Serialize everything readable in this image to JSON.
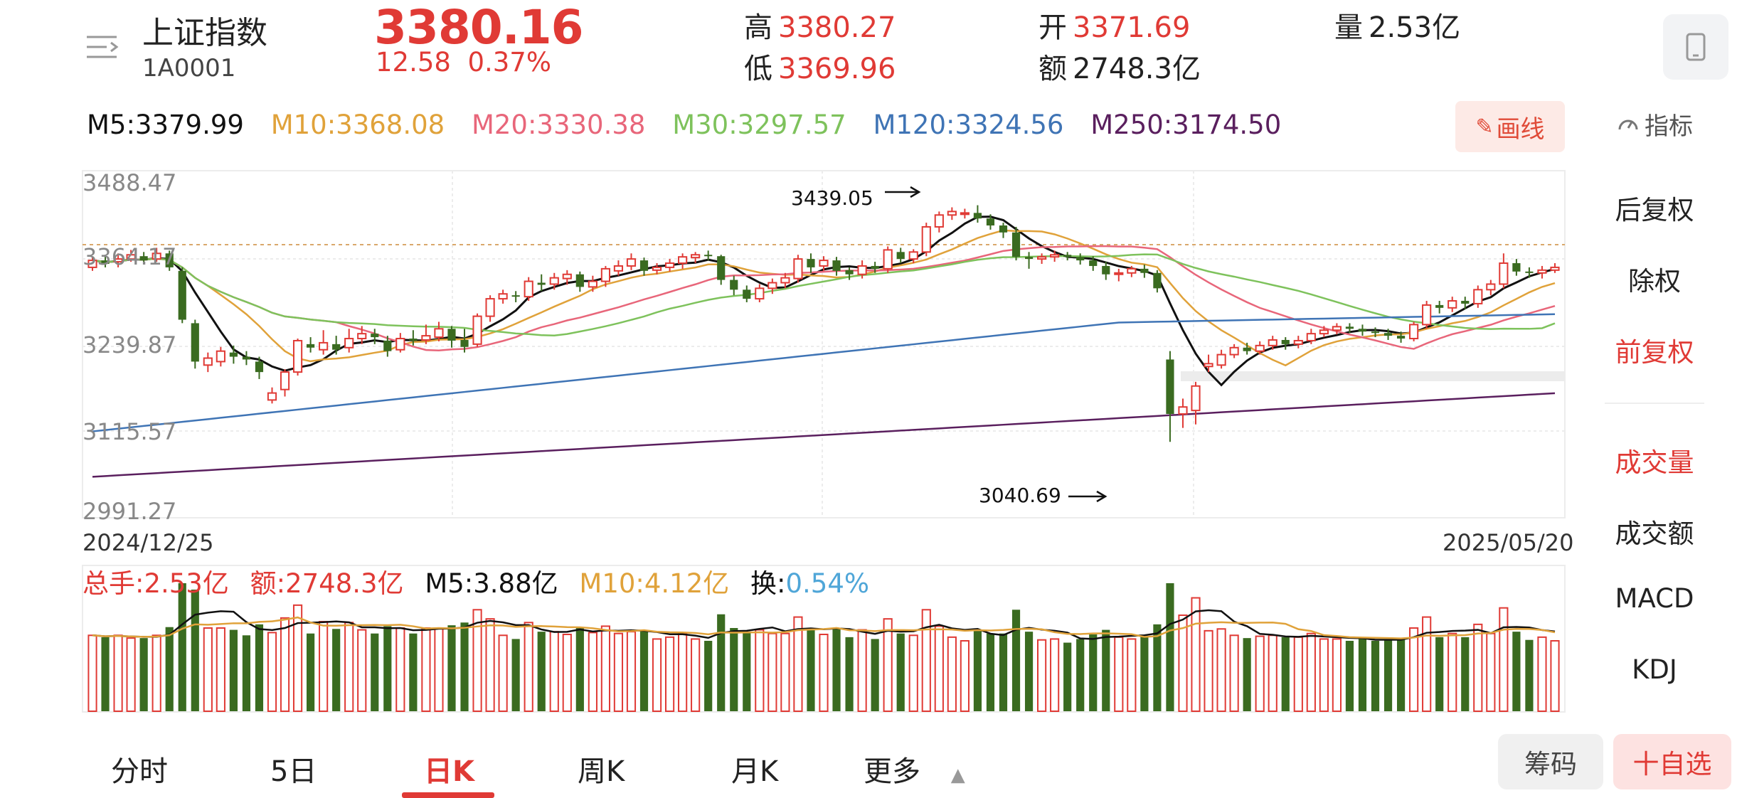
{
  "header": {
    "title": "上证指数",
    "code": "1A0001",
    "price": "3380.16",
    "change": "12.58",
    "change_pct": "0.37%",
    "high_label": "高",
    "high": "3380.27",
    "low_label": "低",
    "low": "3369.96",
    "open_label": "开",
    "open": "3371.69",
    "amount_label": "额",
    "amount": "2748.3亿",
    "volume_label": "量",
    "volume": "2.53亿"
  },
  "ma": {
    "m5": "M5:3379.99",
    "m10": "M10:3368.08",
    "m20": "M20:3330.38",
    "m30": "M30:3297.57",
    "m120": "M120:3324.56",
    "m250": "M250:3174.50"
  },
  "toolbar": {
    "draw_label": "画线",
    "indicator_label": "指标"
  },
  "right_panel": {
    "items": [
      "后复权",
      "除权",
      "前复权",
      "成交量",
      "成交额",
      "MACD",
      "KDJ"
    ]
  },
  "chart": {
    "y_ticks": [
      "3488.47",
      "3364.17",
      "3239.87",
      "3115.57",
      "2991.27"
    ],
    "start_date": "2024/12/25",
    "end_date": "2025/05/20",
    "high_annotation": "3439.05",
    "low_annotation": "3040.69"
  },
  "volume": {
    "total": "总手:2.53亿",
    "amount": "额:2748.3亿",
    "m5": "M5:3.88亿",
    "m10": "M10:4.12亿",
    "turnover_label": "换:",
    "turnover": "0.54%"
  },
  "tabs": {
    "items": [
      "分时",
      "5日",
      "日K",
      "周K",
      "月K",
      "更多"
    ],
    "active": "日K",
    "chips_label": "筹码",
    "favorite_label": "十自选"
  },
  "chart_data": {
    "type": "candlestick",
    "x_range": [
      "2024/12/25",
      "2025/05/20"
    ],
    "ylim": [
      2991.27,
      3488.47
    ],
    "y_ticks": [
      3488.47,
      3364.17,
      3239.87,
      3115.57,
      2991.27
    ],
    "annotations": [
      {
        "text": "3439.05",
        "value": 3439.05
      },
      {
        "text": "3040.69",
        "value": 3040.69
      }
    ],
    "candles": [
      [
        3350,
        3360,
        3345,
        3365
      ],
      [
        3360,
        3355,
        3350,
        3368
      ],
      [
        3358,
        3362,
        3350,
        3370
      ],
      [
        3362,
        3368,
        3358,
        3375
      ],
      [
        3366,
        3360,
        3355,
        3372
      ],
      [
        3362,
        3370,
        3358,
        3378
      ],
      [
        3370,
        3350,
        3345,
        3374
      ],
      [
        3345,
        3275,
        3270,
        3350
      ],
      [
        3270,
        3215,
        3205,
        3275
      ],
      [
        3210,
        3220,
        3200,
        3228
      ],
      [
        3215,
        3230,
        3208,
        3236
      ],
      [
        3228,
        3222,
        3212,
        3238
      ],
      [
        3222,
        3218,
        3210,
        3230
      ],
      [
        3215,
        3200,
        3190,
        3222
      ],
      [
        3160,
        3170,
        3155,
        3178
      ],
      [
        3175,
        3200,
        3165,
        3204
      ],
      [
        3200,
        3245,
        3195,
        3248
      ],
      [
        3240,
        3235,
        3228,
        3250
      ],
      [
        3232,
        3242,
        3225,
        3260
      ],
      [
        3240,
        3232,
        3225,
        3252
      ],
      [
        3235,
        3248,
        3228,
        3262
      ],
      [
        3248,
        3255,
        3240,
        3266
      ],
      [
        3255,
        3250,
        3240,
        3262
      ],
      [
        3245,
        3230,
        3222,
        3252
      ],
      [
        3232,
        3248,
        3228,
        3256
      ],
      [
        3248,
        3245,
        3238,
        3260
      ],
      [
        3246,
        3252,
        3240,
        3268
      ],
      [
        3250,
        3262,
        3244,
        3272
      ],
      [
        3262,
        3245,
        3235,
        3266
      ],
      [
        3246,
        3236,
        3228,
        3262
      ],
      [
        3240,
        3280,
        3236,
        3284
      ],
      [
        3280,
        3305,
        3272,
        3310
      ],
      [
        3305,
        3312,
        3298,
        3318
      ],
      [
        3310,
        3308,
        3300,
        3316
      ],
      [
        3308,
        3330,
        3302,
        3336
      ],
      [
        3328,
        3325,
        3316,
        3340
      ],
      [
        3326,
        3335,
        3318,
        3342
      ],
      [
        3334,
        3340,
        3325,
        3346
      ],
      [
        3340,
        3322,
        3315,
        3344
      ],
      [
        3322,
        3330,
        3315,
        3338
      ],
      [
        3330,
        3348,
        3322,
        3352
      ],
      [
        3345,
        3352,
        3338,
        3360
      ],
      [
        3352,
        3362,
        3346,
        3370
      ],
      [
        3360,
        3345,
        3338,
        3364
      ],
      [
        3346,
        3350,
        3340,
        3356
      ],
      [
        3350,
        3356,
        3344,
        3362
      ],
      [
        3356,
        3365,
        3348,
        3370
      ],
      [
        3364,
        3368,
        3356,
        3372
      ],
      [
        3368,
        3366,
        3360,
        3374
      ],
      [
        3366,
        3332,
        3325,
        3368
      ],
      [
        3332,
        3318,
        3310,
        3338
      ],
      [
        3318,
        3305,
        3300,
        3324
      ],
      [
        3305,
        3320,
        3300,
        3326
      ],
      [
        3320,
        3328,
        3312,
        3334
      ],
      [
        3328,
        3335,
        3320,
        3342
      ],
      [
        3334,
        3362,
        3328,
        3368
      ],
      [
        3362,
        3350,
        3342,
        3370
      ],
      [
        3352,
        3360,
        3345,
        3366
      ],
      [
        3360,
        3345,
        3338,
        3365
      ],
      [
        3346,
        3340,
        3332,
        3350
      ],
      [
        3340,
        3352,
        3334,
        3360
      ],
      [
        3352,
        3348,
        3342,
        3358
      ],
      [
        3348,
        3375,
        3342,
        3380
      ],
      [
        3372,
        3362,
        3356,
        3378
      ],
      [
        3362,
        3372,
        3356,
        3376
      ],
      [
        3372,
        3408,
        3366,
        3414
      ],
      [
        3408,
        3425,
        3400,
        3430
      ],
      [
        3425,
        3430,
        3418,
        3436
      ],
      [
        3428,
        3428,
        3420,
        3434
      ],
      [
        3428,
        3420,
        3414,
        3439
      ],
      [
        3420,
        3410,
        3404,
        3426
      ],
      [
        3410,
        3400,
        3392,
        3414
      ],
      [
        3400,
        3365,
        3360,
        3408
      ],
      [
        3365,
        3362,
        3348,
        3372
      ],
      [
        3362,
        3365,
        3355,
        3370
      ],
      [
        3365,
        3368,
        3358,
        3374
      ],
      [
        3368,
        3365,
        3360,
        3372
      ],
      [
        3365,
        3360,
        3354,
        3370
      ],
      [
        3360,
        3352,
        3345,
        3366
      ],
      [
        3352,
        3340,
        3332,
        3358
      ],
      [
        3340,
        3342,
        3330,
        3348
      ],
      [
        3342,
        3348,
        3336,
        3352
      ],
      [
        3348,
        3342,
        3335,
        3354
      ],
      [
        3342,
        3320,
        3314,
        3346
      ],
      [
        3218,
        3140,
        3100,
        3230
      ],
      [
        3140,
        3150,
        3120,
        3162
      ],
      [
        3145,
        3180,
        3125,
        3186
      ],
      [
        3208,
        3212,
        3200,
        3225
      ],
      [
        3210,
        3225,
        3205,
        3232
      ],
      [
        3225,
        3235,
        3220,
        3240
      ],
      [
        3235,
        3230,
        3225,
        3242
      ],
      [
        3230,
        3238,
        3225,
        3244
      ],
      [
        3238,
        3246,
        3232,
        3252
      ],
      [
        3246,
        3240,
        3232,
        3250
      ],
      [
        3240,
        3245,
        3234,
        3252
      ],
      [
        3245,
        3255,
        3240,
        3262
      ],
      [
        3255,
        3260,
        3250,
        3266
      ],
      [
        3260,
        3265,
        3254,
        3270
      ],
      [
        3265,
        3262,
        3256,
        3270
      ],
      [
        3262,
        3258,
        3252,
        3268
      ],
      [
        3258,
        3256,
        3250,
        3264
      ],
      [
        3256,
        3252,
        3246,
        3262
      ],
      [
        3252,
        3248,
        3242,
        3258
      ],
      [
        3248,
        3268,
        3244,
        3272
      ],
      [
        3268,
        3296,
        3262,
        3302
      ],
      [
        3296,
        3292,
        3284,
        3302
      ],
      [
        3292,
        3302,
        3286,
        3308
      ],
      [
        3302,
        3298,
        3290,
        3308
      ],
      [
        3298,
        3318,
        3292,
        3324
      ],
      [
        3318,
        3326,
        3310,
        3332
      ],
      [
        3326,
        3356,
        3320,
        3370
      ],
      [
        3356,
        3344,
        3338,
        3362
      ],
      [
        3344,
        3342,
        3335,
        3350
      ],
      [
        3342,
        3346,
        3334,
        3352
      ],
      [
        3346,
        3350,
        3342,
        3356
      ]
    ],
    "volume_m5_last": 3.88,
    "volume_m10_last": 4.12
  }
}
